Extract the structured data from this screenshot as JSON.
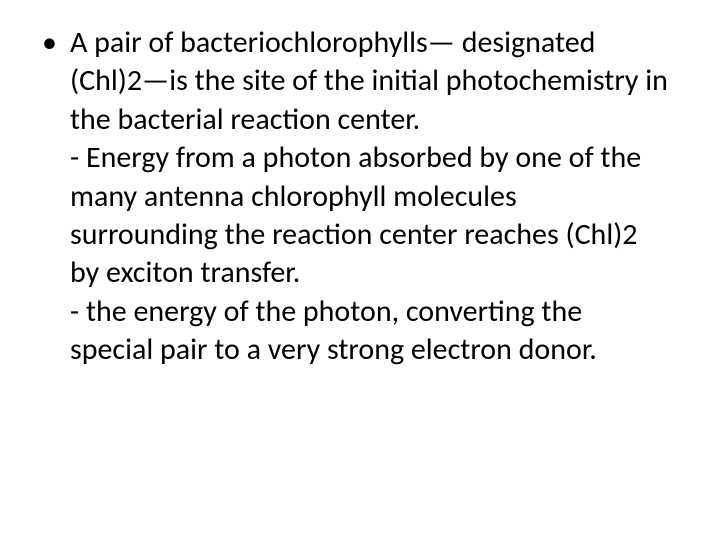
{
  "slide": {
    "background_color": "#ffffff",
    "text_color": "#000000",
    "font_family": "Calibri",
    "font_size_pt": 30,
    "line_height": 1.28,
    "bullet_char": "•",
    "bullets": [
      {
        "main": "A pair of bacteriochlorophylls— designated (Chl)2—is the site of the initial photochemistry in the bacterial reaction center.",
        "subs": [
          "-  Energy from a photon absorbed by one of the many antenna chlorophyll molecules surrounding the reaction center reaches (Chl)2 by exciton transfer.",
          "-  the energy of the photon, converting the special pair to a very strong electron donor."
        ]
      }
    ]
  }
}
